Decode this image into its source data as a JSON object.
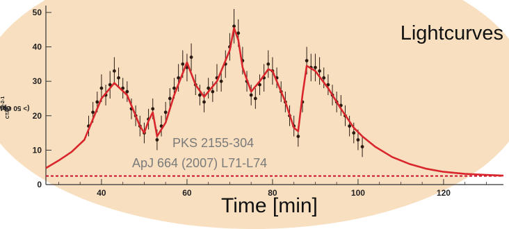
{
  "chart_data": {
    "type": "line",
    "title": "Lightcurves",
    "xlabel": "Time [min]",
    "ylabel": "I_CTA(> 50 GeV) [ 10^-9 cm^-2 s^-1 ]",
    "ylabel_parts": {
      "main": "I",
      "sub": "CTA",
      "rest": "(> 50 GeV) [ 10",
      "exp1": "-9",
      "mid": " cm",
      "exp2": "-2",
      "mid2": " s",
      "exp3": "-1",
      "end": " ]"
    },
    "annotations": [
      "PKS 2155-304",
      "ApJ 664 (2007) L71-L74"
    ],
    "xlim": [
      27,
      134
    ],
    "ylim": [
      0,
      52
    ],
    "xticks": [
      40,
      60,
      80,
      100,
      120
    ],
    "yticks": [
      0,
      10,
      20,
      30,
      40,
      50
    ],
    "baseline": 2.5,
    "model_curve": {
      "x": [
        27,
        30,
        33,
        36,
        38,
        40,
        43,
        46,
        49,
        50,
        51,
        52,
        53,
        55,
        57,
        60,
        62,
        64,
        67,
        70,
        71,
        72,
        73,
        75,
        77,
        79,
        80,
        81,
        83,
        85,
        86,
        87,
        88,
        90,
        93,
        96,
        99,
        101,
        104,
        108,
        112,
        116,
        120,
        125,
        130,
        134
      ],
      "y": [
        4.8,
        7.0,
        9.5,
        13.0,
        19.0,
        25.0,
        29.5,
        26.0,
        17.0,
        15.0,
        18.5,
        21.0,
        14.0,
        18.0,
        26.0,
        35.5,
        29.0,
        25.5,
        30.0,
        39.0,
        45.5,
        42.0,
        34.0,
        27.0,
        30.0,
        33.5,
        33.0,
        30.0,
        24.0,
        16.5,
        15.5,
        26.0,
        34.5,
        33.0,
        28.0,
        22.0,
        16.5,
        14.0,
        11.0,
        8.0,
        6.0,
        4.6,
        3.7,
        3.1,
        2.8,
        2.6
      ]
    },
    "data_points": {
      "x": [
        37,
        38,
        39,
        40,
        41,
        42,
        43,
        44,
        45,
        46,
        47,
        48,
        49,
        50,
        51,
        52,
        53,
        54,
        55,
        56,
        57,
        58,
        59,
        60,
        61,
        62,
        63,
        64,
        65,
        66,
        67,
        68,
        69,
        70,
        71,
        72,
        73,
        74,
        75,
        76,
        77,
        78,
        79,
        80,
        81,
        82,
        83,
        84,
        85,
        86,
        87,
        88,
        89,
        90,
        91,
        92,
        93,
        94,
        95,
        96,
        97,
        98,
        99,
        100,
        101
      ],
      "y": [
        17,
        21,
        24,
        28,
        26,
        29,
        33,
        31,
        28,
        27,
        22,
        20,
        17,
        15,
        19,
        22,
        13,
        17,
        21,
        25,
        28,
        31,
        35,
        34,
        37,
        29,
        26,
        24,
        28,
        27,
        31,
        30,
        35,
        40,
        46,
        44,
        36,
        30,
        26,
        25,
        29,
        31,
        35,
        33,
        31,
        27,
        24,
        20,
        17,
        14,
        24,
        36,
        34,
        34,
        33,
        31,
        29,
        26,
        24,
        23,
        20,
        17,
        15,
        13,
        11
      ],
      "err": [
        3,
        3,
        3,
        4,
        3,
        4,
        4,
        3,
        3,
        3,
        3,
        3,
        3,
        3,
        3,
        3,
        3,
        3,
        3,
        3,
        3,
        4,
        4,
        4,
        4,
        3,
        3,
        3,
        3,
        3,
        4,
        3,
        4,
        4,
        5,
        4,
        4,
        3,
        3,
        3,
        3,
        4,
        4,
        4,
        3,
        3,
        3,
        3,
        3,
        3,
        3,
        4,
        4,
        4,
        4,
        3,
        3,
        3,
        3,
        3,
        3,
        3,
        3,
        3,
        3
      ]
    },
    "colors": {
      "background": "#f8dfc0",
      "curve": "#d9262c",
      "points": "#2a1a10",
      "baseline": "#c8102e",
      "annotation": "#7a7a7a"
    },
    "grid": false
  }
}
